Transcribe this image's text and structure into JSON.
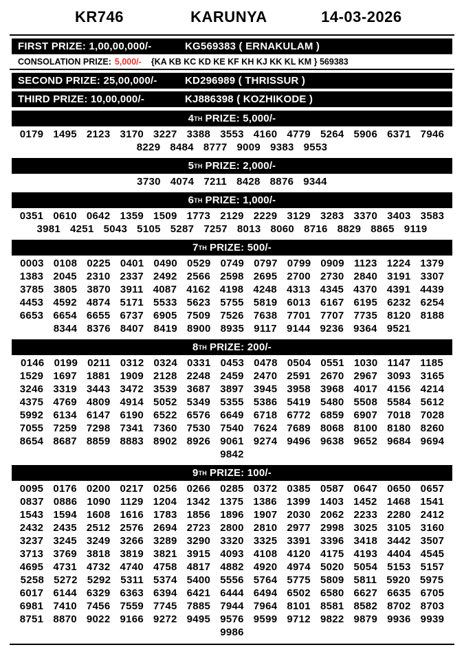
{
  "header": {
    "draw_code": "KR746",
    "lottery_name": "KARUNYA",
    "draw_date": "14-03-2026"
  },
  "colors": {
    "bar_background": "#000000",
    "bar_text": "#ffffff",
    "consolation_amount_red": "#e8342a"
  },
  "main_prizes": [
    {
      "label": "FIRST PRIZE: 1,00,00,000/-",
      "winner": "KG569383 ( ERNAKULAM )"
    },
    {
      "label": "SECOND PRIZE: 25,00,000/-",
      "winner": "KD296989 ( THRISSUR )"
    },
    {
      "label": "THIRD PRIZE: 10,00,000/-",
      "winner": "KJ886398 ( KOZHIKODE )"
    }
  ],
  "consolation": {
    "label": "CONSOLATION PRIZE:",
    "amount": "5,000/-",
    "series": "{KA KB KC KD KE KF KH KJ KK KL KM } 569383"
  },
  "tiers": [
    {
      "ordinal": "4",
      "ordinal_suffix": "TH",
      "title": "PRIZE: 5,000/-",
      "numbers": [
        "0179",
        "1495",
        "2123",
        "3170",
        "3227",
        "3388",
        "3553",
        "4160",
        "4779",
        "5264",
        "5906",
        "6371",
        "7946",
        "8229",
        "8484",
        "8777",
        "9009",
        "9383",
        "9553"
      ]
    },
    {
      "ordinal": "5",
      "ordinal_suffix": "TH",
      "title": "PRIZE: 2,000/-",
      "numbers": [
        "3730",
        "4074",
        "7211",
        "8428",
        "8876",
        "9344"
      ]
    },
    {
      "ordinal": "6",
      "ordinal_suffix": "TH",
      "title": "PRIZE: 1,000/-",
      "numbers": [
        "0351",
        "0610",
        "0642",
        "1359",
        "1509",
        "1773",
        "2129",
        "2229",
        "3129",
        "3283",
        "3370",
        "3403",
        "3583",
        "3981",
        "4251",
        "5043",
        "5105",
        "5287",
        "7257",
        "8013",
        "8060",
        "8716",
        "8829",
        "8865",
        "9119"
      ]
    },
    {
      "ordinal": "7",
      "ordinal_suffix": "TH",
      "title": "PRIZE: 500/-",
      "numbers": [
        "0003",
        "0108",
        "0225",
        "0401",
        "0490",
        "0529",
        "0749",
        "0797",
        "0799",
        "0909",
        "1123",
        "1224",
        "1379",
        "1383",
        "2045",
        "2310",
        "2337",
        "2492",
        "2566",
        "2598",
        "2695",
        "2700",
        "2730",
        "2840",
        "3191",
        "3307",
        "3785",
        "3805",
        "3870",
        "3911",
        "4087",
        "4162",
        "4198",
        "4248",
        "4313",
        "4345",
        "4370",
        "4391",
        "4439",
        "4453",
        "4592",
        "4874",
        "5171",
        "5533",
        "5623",
        "5755",
        "5819",
        "6013",
        "6167",
        "6195",
        "6232",
        "6254",
        "6653",
        "6654",
        "6655",
        "6737",
        "6905",
        "7509",
        "7526",
        "7638",
        "7701",
        "7707",
        "7735",
        "8120",
        "8188",
        "8344",
        "8376",
        "8407",
        "8419",
        "8900",
        "8935",
        "9117",
        "9144",
        "9236",
        "9364",
        "9521"
      ]
    },
    {
      "ordinal": "8",
      "ordinal_suffix": "TH",
      "title": "PRIZE: 200/-",
      "numbers": [
        "0146",
        "0199",
        "0211",
        "0312",
        "0324",
        "0331",
        "0453",
        "0478",
        "0504",
        "0551",
        "1030",
        "1147",
        "1185",
        "1529",
        "1697",
        "1881",
        "1909",
        "2128",
        "2248",
        "2459",
        "2470",
        "2591",
        "2670",
        "2967",
        "3093",
        "3165",
        "3246",
        "3319",
        "3443",
        "3472",
        "3539",
        "3687",
        "3897",
        "3945",
        "3958",
        "3968",
        "4017",
        "4156",
        "4214",
        "4375",
        "4769",
        "4809",
        "4914",
        "5052",
        "5349",
        "5355",
        "5386",
        "5419",
        "5480",
        "5508",
        "5584",
        "5612",
        "5992",
        "6134",
        "6147",
        "6190",
        "6522",
        "6576",
        "6649",
        "6718",
        "6772",
        "6859",
        "6907",
        "7018",
        "7028",
        "7055",
        "7259",
        "7298",
        "7341",
        "7360",
        "7530",
        "7540",
        "7624",
        "7689",
        "8068",
        "8100",
        "8180",
        "8260",
        "8654",
        "8687",
        "8859",
        "8883",
        "8902",
        "8926",
        "9061",
        "9274",
        "9496",
        "9638",
        "9652",
        "9684",
        "9694",
        "9842"
      ]
    },
    {
      "ordinal": "9",
      "ordinal_suffix": "TH",
      "title": "PRIZE: 100/-",
      "numbers": [
        "0095",
        "0176",
        "0200",
        "0217",
        "0256",
        "0266",
        "0285",
        "0372",
        "0385",
        "0587",
        "0647",
        "0650",
        "0657",
        "0837",
        "0886",
        "1090",
        "1129",
        "1204",
        "1342",
        "1375",
        "1386",
        "1399",
        "1403",
        "1452",
        "1468",
        "1541",
        "1543",
        "1594",
        "1608",
        "1616",
        "1783",
        "1856",
        "1896",
        "1907",
        "2030",
        "2062",
        "2233",
        "2280",
        "2412",
        "2432",
        "2435",
        "2512",
        "2576",
        "2694",
        "2723",
        "2800",
        "2810",
        "2977",
        "2998",
        "3025",
        "3105",
        "3160",
        "3237",
        "3245",
        "3249",
        "3266",
        "3289",
        "3290",
        "3320",
        "3325",
        "3391",
        "3396",
        "3418",
        "3442",
        "3507",
        "3713",
        "3769",
        "3818",
        "3819",
        "3821",
        "3915",
        "4093",
        "4108",
        "4120",
        "4175",
        "4193",
        "4404",
        "4545",
        "4695",
        "4731",
        "4732",
        "4740",
        "4758",
        "4817",
        "4882",
        "4920",
        "4974",
        "5020",
        "5054",
        "5153",
        "5157",
        "5258",
        "5272",
        "5292",
        "5311",
        "5374",
        "5400",
        "5556",
        "5764",
        "5775",
        "5809",
        "5811",
        "5920",
        "5975",
        "6017",
        "6144",
        "6329",
        "6363",
        "6394",
        "6421",
        "6444",
        "6494",
        "6502",
        "6580",
        "6627",
        "6635",
        "6705",
        "6981",
        "7410",
        "7456",
        "7559",
        "7745",
        "7885",
        "7944",
        "7964",
        "8101",
        "8581",
        "8582",
        "8702",
        "8703",
        "8751",
        "8870",
        "9022",
        "9166",
        "9272",
        "9495",
        "9576",
        "9599",
        "9712",
        "9822",
        "9879",
        "9936",
        "9939",
        "9986"
      ]
    }
  ],
  "layout": {
    "numbers_per_row": 13
  }
}
